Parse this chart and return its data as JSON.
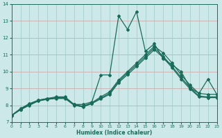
{
  "xlabel": "Humidex (Indice chaleur)",
  "bg_color": "#cce8e8",
  "grid_color_main": "#aad0d0",
  "grid_color_pink": "#d4a8a8",
  "line_color": "#1a6b5a",
  "xlim": [
    0,
    23
  ],
  "ylim": [
    7,
    14
  ],
  "xticks": [
    0,
    1,
    2,
    3,
    4,
    5,
    6,
    7,
    8,
    9,
    10,
    11,
    12,
    13,
    14,
    15,
    16,
    17,
    18,
    19,
    20,
    21,
    22,
    23
  ],
  "yticks": [
    7,
    8,
    9,
    10,
    11,
    12,
    13,
    14
  ],
  "series": [
    {
      "x": [
        0,
        1,
        2,
        3,
        4,
        5,
        6,
        7,
        8,
        9,
        10,
        11,
        12,
        13,
        14,
        15,
        16,
        17,
        18,
        19,
        20,
        21,
        22,
        23
      ],
      "y": [
        7.4,
        7.8,
        8.1,
        8.3,
        8.4,
        8.5,
        8.5,
        8.05,
        8.05,
        8.2,
        9.8,
        9.8,
        13.3,
        12.5,
        13.55,
        11.2,
        11.65,
        10.75,
        10.4,
        10.0,
        9.05,
        8.7,
        9.55,
        8.65
      ],
      "has_markers": true
    },
    {
      "x": [
        0,
        1,
        2,
        3,
        4,
        5,
        6,
        7,
        8,
        9,
        10,
        11,
        12,
        13,
        14,
        15,
        16,
        17,
        18,
        19,
        20,
        21,
        22,
        23
      ],
      "y": [
        7.4,
        7.78,
        8.05,
        8.3,
        8.4,
        8.45,
        8.45,
        8.05,
        7.95,
        8.15,
        8.5,
        8.8,
        9.5,
        10.0,
        10.5,
        11.0,
        11.5,
        11.1,
        10.5,
        9.8,
        9.2,
        8.7,
        8.65,
        8.65
      ],
      "has_markers": true
    },
    {
      "x": [
        0,
        1,
        2,
        3,
        4,
        5,
        6,
        7,
        8,
        9,
        10,
        11,
        12,
        13,
        14,
        15,
        16,
        17,
        18,
        19,
        20,
        21,
        22,
        23
      ],
      "y": [
        7.4,
        7.75,
        8.02,
        8.27,
        8.37,
        8.42,
        8.42,
        8.02,
        7.92,
        8.12,
        8.42,
        8.72,
        9.42,
        9.92,
        10.4,
        10.9,
        11.4,
        10.9,
        10.3,
        9.65,
        9.05,
        8.55,
        8.5,
        8.5
      ],
      "has_markers": true
    },
    {
      "x": [
        0,
        1,
        2,
        3,
        4,
        5,
        6,
        7,
        8,
        9,
        10,
        11,
        12,
        13,
        14,
        15,
        16,
        17,
        18,
        19,
        20,
        21,
        22,
        23
      ],
      "y": [
        7.38,
        7.73,
        8.0,
        8.25,
        8.35,
        8.4,
        8.4,
        8.0,
        7.9,
        8.1,
        8.38,
        8.65,
        9.35,
        9.82,
        10.3,
        10.8,
        11.3,
        10.82,
        10.22,
        9.55,
        8.97,
        8.5,
        8.45,
        8.45
      ],
      "has_markers": true
    }
  ]
}
